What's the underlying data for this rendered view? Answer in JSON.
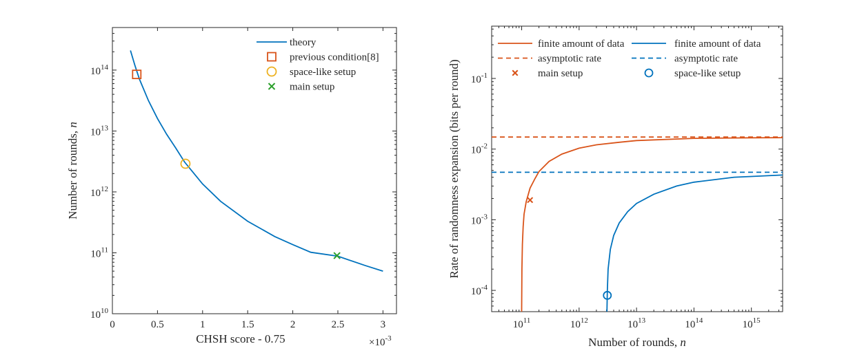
{
  "colors": {
    "blue": "#0072BD",
    "orange": "#D95319",
    "yellow": "#EDB120",
    "green": "#2CA02C",
    "axis": "#262626"
  },
  "chart_data": [
    {
      "type": "line",
      "xlabel": "CHSH score - 0.75",
      "ylabel": "Number of rounds, ",
      "ylabel_italic": "n",
      "x_multiplier": "×10",
      "x_multiplier_exp": "-3",
      "xlim": [
        0,
        3.15
      ],
      "ylim": [
        10000000000.0,
        500000000000000.0
      ],
      "yscale": "log",
      "xticks": [
        0,
        0.5,
        1,
        1.5,
        2,
        2.5,
        3
      ],
      "xtick_labels": [
        "0",
        "0.5",
        "1",
        "1.5",
        "2",
        "2.5",
        "3"
      ],
      "yticks": [
        10000000000.0,
        100000000000.0,
        1000000000000.0,
        10000000000000.0,
        100000000000000.0
      ],
      "ytick_base": "10",
      "ytick_exps": [
        "10",
        "11",
        "12",
        "13",
        "14"
      ],
      "legend_position": "top-right",
      "series": [
        {
          "name": "theory",
          "style": "line",
          "color": "#0072BD",
          "x": [
            0.2,
            0.25,
            0.3,
            0.4,
            0.5,
            0.6,
            0.7,
            0.8,
            1.0,
            1.2,
            1.5,
            1.8,
            2.0,
            2.2,
            2.5,
            2.8,
            3.0
          ],
          "y": [
            210000000000000.0,
            119000000000000.0,
            71000000000000.0,
            31500000000000.0,
            16000000000000.0,
            8900000000000.0,
            5300000000000.0,
            3100000000000.0,
            1350000000000.0,
            700000000000.0,
            330000000000.0,
            185000000000.0,
            136000000000.0,
            102000000000.0,
            88000000000.0,
            62000000000.0,
            50000000000.0
          ]
        },
        {
          "name": "previous condition[8]",
          "style": "square",
          "color": "#D95319",
          "x": [
            0.27
          ],
          "y": [
            85000000000000.0
          ]
        },
        {
          "name": "space-like setup",
          "style": "circle",
          "color": "#EDB120",
          "x": [
            0.81
          ],
          "y": [
            2900000000000.0
          ]
        },
        {
          "name": "main setup",
          "style": "x",
          "color": "#2CA02C",
          "x": [
            2.49
          ],
          "y": [
            90000000000.0
          ]
        }
      ]
    },
    {
      "type": "line",
      "xlabel": "Number of rounds, ",
      "xlabel_italic": "n",
      "ylabel": "Rate of randomness expansion (bits per round)",
      "xscale": "log",
      "yscale": "log",
      "xlim": [
        30000000000.0,
        3500000000000000.0
      ],
      "ylim": [
        5e-05,
        0.55
      ],
      "xticks": [
        100000000000.0,
        1000000000000.0,
        10000000000000.0,
        100000000000000.0,
        1000000000000000.0
      ],
      "xtick_base": "10",
      "xtick_exps": [
        "11",
        "12",
        "13",
        "14",
        "15"
      ],
      "yticks": [
        0.0001,
        0.001,
        0.01,
        0.1
      ],
      "ytick_base": "10",
      "ytick_exps": [
        "-4",
        "-3",
        "-2",
        "-1"
      ],
      "legend_position": "top",
      "series": [
        {
          "name": "finite amount of data",
          "style": "line",
          "color": "#D95319",
          "x": [
            100000000000.0,
            101000000000.0,
            103000000000.0,
            106000000000.0,
            110000000000.0,
            120000000000.0,
            140000000000.0,
            170000000000.0,
            200000000000.0,
            300000000000.0,
            500000000000.0,
            1000000000000.0,
            2000000000000.0,
            5000000000000.0,
            10000000000000.0,
            100000000000000.0,
            1000000000000000.0,
            3500000000000000.0
          ],
          "y": [
            5e-05,
            0.0002,
            0.00045,
            0.0008,
            0.0012,
            0.0018,
            0.0028,
            0.0038,
            0.0048,
            0.0067,
            0.0085,
            0.0103,
            0.0115,
            0.0125,
            0.0132,
            0.0142,
            0.01445,
            0.0145
          ]
        },
        {
          "name": "asymptotic rate",
          "style": "dashed",
          "color": "#D95319",
          "x": [
            30000000000.0,
            3500000000000000.0
          ],
          "y": [
            0.0148,
            0.0148
          ]
        },
        {
          "name": "main setup",
          "style": "x",
          "color": "#D95319",
          "x": [
            140000000000.0
          ],
          "y": [
            0.0019
          ]
        },
        {
          "name": "finite amount of data",
          "style": "line",
          "color": "#0072BD",
          "x": [
            3050000000000.0,
            3100000000000.0,
            3200000000000.0,
            3500000000000.0,
            4000000000000.0,
            5000000000000.0,
            7000000000000.0,
            10000000000000.0,
            20000000000000.0,
            50000000000000.0,
            100000000000000.0,
            500000000000000.0,
            1000000000000000.0,
            3500000000000000.0
          ],
          "y": [
            5e-05,
            0.0001,
            0.0002,
            0.00038,
            0.0006,
            0.0009,
            0.0013,
            0.0017,
            0.0023,
            0.003,
            0.0034,
            0.004,
            0.0041,
            0.0043
          ]
        },
        {
          "name": "asymptotic rate",
          "style": "dashed",
          "color": "#0072BD",
          "x": [
            30000000000.0,
            3500000000000000.0
          ],
          "y": [
            0.0047,
            0.0047
          ]
        },
        {
          "name": "space-like setup",
          "style": "circle",
          "color": "#0072BD",
          "x": [
            3100000000000.0
          ],
          "y": [
            8.5e-05
          ]
        }
      ]
    }
  ]
}
